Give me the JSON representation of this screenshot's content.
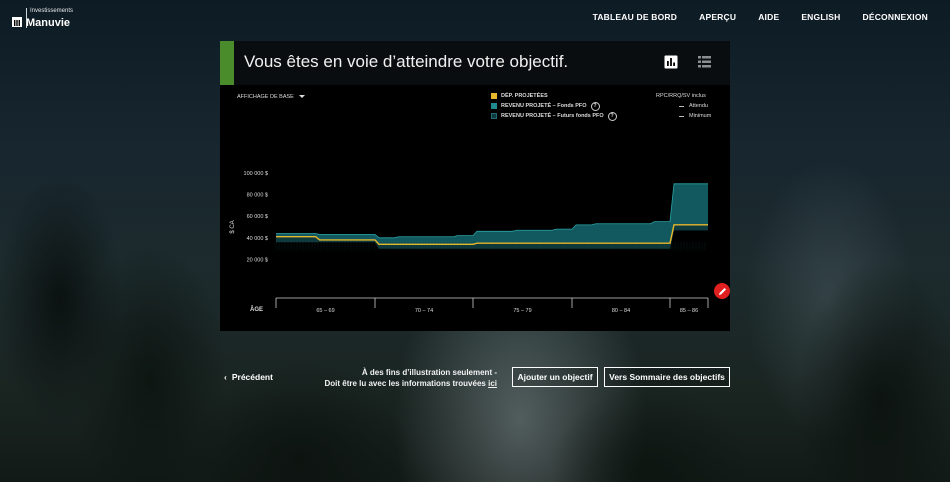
{
  "header": {
    "brand_small": "Investissements",
    "brand_name": "Manuvie",
    "nav": [
      "TABLEAU DE BORD",
      "APERÇU",
      "AIDE",
      "ENGLISH",
      "DÉCONNEXION"
    ]
  },
  "card": {
    "title": "Vous êtes en voie d’atteindre votre objectif.",
    "accent_color": "#4a8b2c",
    "icons": [
      "bar-chart-icon",
      "list-icon"
    ]
  },
  "controls": {
    "view_select": "AFFICHAGE DE BASE"
  },
  "legend": {
    "items": [
      {
        "label": "DÉP. PROJETÉES",
        "color": "#e8b62c",
        "help": false
      },
      {
        "label": "REVENU PROJETÉ – Fonds PFO",
        "color": "#1f8a90",
        "help": true
      },
      {
        "label": "REVENU PROJETÉ – Futurs fonds PFO",
        "color": "#0f3a3e",
        "help": true
      }
    ],
    "help_symbol": "?",
    "lines_title": "RPC/RRQ/SV inclus",
    "lines": [
      "Attendu",
      "Minimum"
    ]
  },
  "chart_data": {
    "type": "area",
    "ylabel": "$ CA",
    "xlabel": "ÂGE",
    "ylim": [
      0,
      100000
    ],
    "yticks": [
      100000,
      80000,
      60000,
      40000,
      20000
    ],
    "ytick_labels": [
      "100 000 $",
      "80 000 $",
      "60 000 $",
      "40 000 $",
      "20 000 $"
    ],
    "age_groups": [
      "65 – 69",
      "70 – 74",
      "75 – 79",
      "80 – 84",
      "85 – 86"
    ],
    "x": [
      65,
      66,
      67,
      68,
      69,
      70,
      71,
      72,
      73,
      74,
      75,
      76,
      77,
      78,
      79,
      80,
      81,
      82,
      83,
      84,
      85,
      86
    ],
    "series": [
      {
        "name": "DÉP. PROJETÉES",
        "values": [
          41000,
          41000,
          38000,
          38000,
          38000,
          34000,
          34000,
          34000,
          34000,
          34000,
          35000,
          35000,
          35000,
          35000,
          35000,
          35000,
          35000,
          35000,
          35000,
          35000,
          52000,
          52000
        ]
      },
      {
        "name": "REVENU PROJETÉ – Fonds PFO",
        "values": [
          44000,
          44000,
          43000,
          43000,
          43000,
          40000,
          41000,
          41000,
          41000,
          42000,
          46000,
          46000,
          47000,
          47000,
          48000,
          52000,
          53000,
          53000,
          53000,
          55000,
          90000,
          90000
        ]
      },
      {
        "name": "REVENU PROJETÉ – Futurs fonds PFO",
        "values": [
          36000,
          36000,
          36000,
          36000,
          36000,
          30000,
          30000,
          30000,
          30000,
          30000,
          30000,
          30000,
          30000,
          30000,
          30000,
          30000,
          30000,
          30000,
          30000,
          30000,
          47000,
          47000
        ]
      }
    ]
  },
  "footer": {
    "prev_label": "Précédent",
    "disclaimer_line1": "À des fins d’illustration seulement -",
    "disclaimer_line2": "Doit être lu avec les informations trouvées",
    "disclaimer_link": "ici",
    "add_goal": "Ajouter un objectif",
    "goals_summary": "Vers Sommaire des objectifs"
  }
}
